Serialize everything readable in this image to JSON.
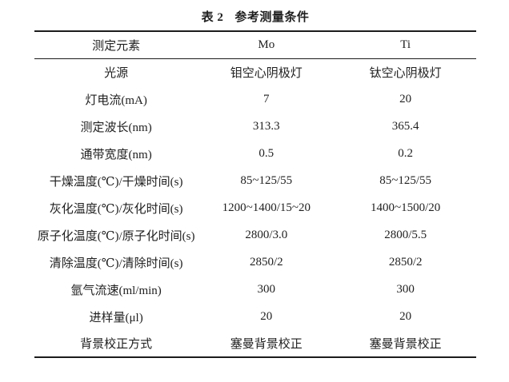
{
  "table": {
    "title_prefix": "表 2",
    "title_text": "参考测量条件",
    "header": [
      "测定元素",
      "Mo",
      "Ti"
    ],
    "rows": [
      {
        "label": "光源",
        "mo": "钼空心阴极灯",
        "ti": "钛空心阴极灯"
      },
      {
        "label": "灯电流(mA)",
        "mo": "7",
        "ti": "20"
      },
      {
        "label": "测定波长(nm)",
        "mo": "313.3",
        "ti": "365.4"
      },
      {
        "label": "通带宽度(nm)",
        "mo": "0.5",
        "ti": "0.2"
      },
      {
        "label": "干燥温度(℃)/干燥时间(s)",
        "mo": "85~125/55",
        "ti": "85~125/55"
      },
      {
        "label": "灰化温度(℃)/灰化时间(s)",
        "mo": "1200~1400/15~20",
        "ti": "1400~1500/20"
      },
      {
        "label": "原子化温度(℃)/原子化时间(s)",
        "mo": "2800/3.0",
        "ti": "2800/5.5"
      },
      {
        "label": "清除温度(℃)/清除时间(s)",
        "mo": "2850/2",
        "ti": "2850/2"
      },
      {
        "label": "氩气流速(ml/min)",
        "mo": "300",
        "ti": "300"
      },
      {
        "label": "进样量(μl)",
        "mo": "20",
        "ti": "20"
      },
      {
        "label": "背景校正方式",
        "mo": "塞曼背景校正",
        "ti": "塞曼背景校正"
      }
    ],
    "colors": {
      "background": "#ffffff",
      "text": "#1f1f1f",
      "rule": "#1c1c1c"
    }
  }
}
